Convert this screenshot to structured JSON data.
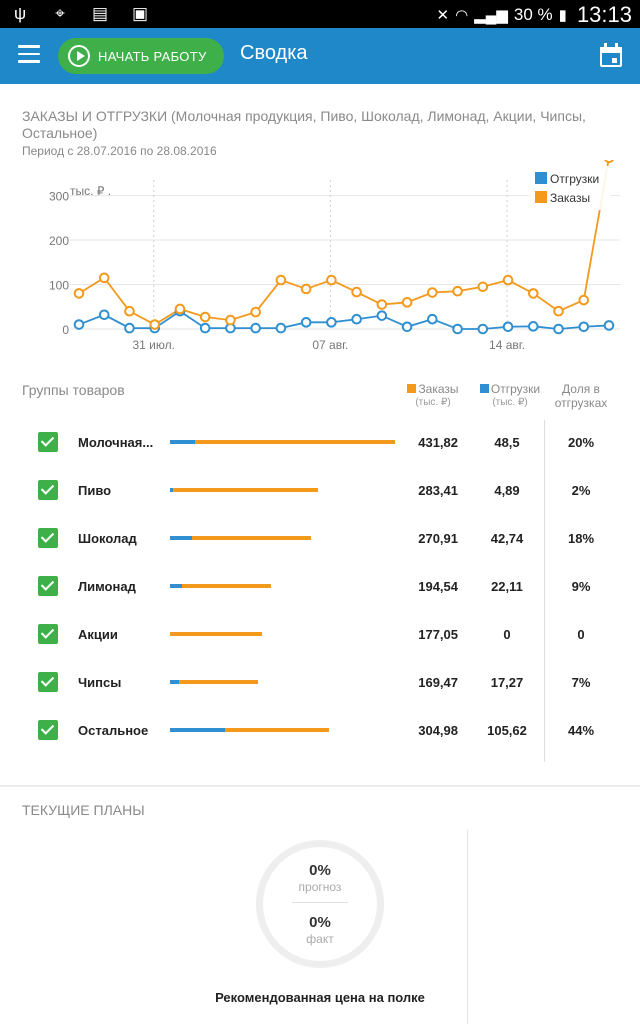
{
  "statusbar": {
    "left_icons": [
      "usb-icon",
      "gps-icon",
      "no-sim-icon",
      "image-icon"
    ],
    "battery_text": "30 %",
    "time": "13:13"
  },
  "appbar": {
    "start_label": "НАЧАТЬ РАБОТУ",
    "title": "Сводка"
  },
  "card1": {
    "title": "ЗАКАЗЫ И ОТГРУЗКИ (Молочная продукция, Пиво, Шоколад, Лимонад, Акции, Чипсы, Остальное)",
    "period": "Период с 28.07.2016 по 28.08.2016"
  },
  "chart_data": {
    "type": "line",
    "ylabel": "тыс. ₽ .",
    "yticks": [
      0,
      100,
      200,
      300
    ],
    "ylim": [
      0,
      380
    ],
    "x_tick_labels": [
      "31 июл.",
      "07 авг.",
      "14 авг."
    ],
    "x_tick_positions": [
      3,
      10,
      17
    ],
    "x": [
      0,
      1,
      2,
      3,
      4,
      5,
      6,
      7,
      8,
      9,
      10,
      11,
      12,
      13,
      14,
      15,
      16,
      17,
      18,
      19,
      20,
      21
    ],
    "legend_position": "top-right",
    "grid": true,
    "series": [
      {
        "name": "Отгрузки",
        "color": "#2f8fd0",
        "values": [
          10,
          32,
          2,
          2,
          40,
          2,
          2,
          2,
          2,
          15,
          15,
          22,
          30,
          5,
          22,
          0,
          0,
          5,
          6,
          0,
          5,
          8
        ]
      },
      {
        "name": "Заказы",
        "color": "#f39a1d",
        "values": [
          80,
          115,
          40,
          10,
          45,
          27,
          20,
          38,
          110,
          90,
          110,
          83,
          55,
          60,
          82,
          85,
          95,
          110,
          80,
          40,
          65,
          385
        ]
      }
    ]
  },
  "groups": {
    "title": "Группы товаров",
    "col_orders": "Заказы",
    "col_orders_unit": "(тыс. ₽)",
    "col_ship": "Отгрузки",
    "col_ship_unit": "(тыс. ₽)",
    "col_share": "Доля в отгрузках",
    "rows": [
      {
        "name": "Молочная...",
        "orders": "431,82",
        "ship": "48,5",
        "share": "20%"
      },
      {
        "name": "Пиво",
        "orders": "283,41",
        "ship": "4,89",
        "share": "2%"
      },
      {
        "name": "Шоколад",
        "orders": "270,91",
        "ship": "42,74",
        "share": "18%"
      },
      {
        "name": "Лимонад",
        "orders": "194,54",
        "ship": "22,11",
        "share": "9%"
      },
      {
        "name": "Акции",
        "orders": "177,05",
        "ship": "0",
        "share": "0"
      },
      {
        "name": "Чипсы",
        "orders": "169,47",
        "ship": "17,27",
        "share": "7%"
      },
      {
        "name": "Остальное",
        "orders": "304,98",
        "ship": "105,62",
        "share": "44%"
      }
    ],
    "orders_values": [
      431.82,
      283.41,
      270.91,
      194.54,
      177.05,
      169.47,
      304.98
    ],
    "ship_values": [
      48.5,
      4.89,
      42.74,
      22.11,
      0,
      17.27,
      105.62
    ]
  },
  "plans": {
    "title": "ТЕКУЩИЕ ПЛАНЫ",
    "forecast_value": "0%",
    "forecast_label": "прогноз",
    "fact_value": "0%",
    "fact_label": "факт",
    "caption": "Рекомендованная цена на полке"
  },
  "colors": {
    "accent": "#1e88c9",
    "green": "#3fb049",
    "orange": "#f39a1d",
    "blue": "#2f8fd0"
  }
}
